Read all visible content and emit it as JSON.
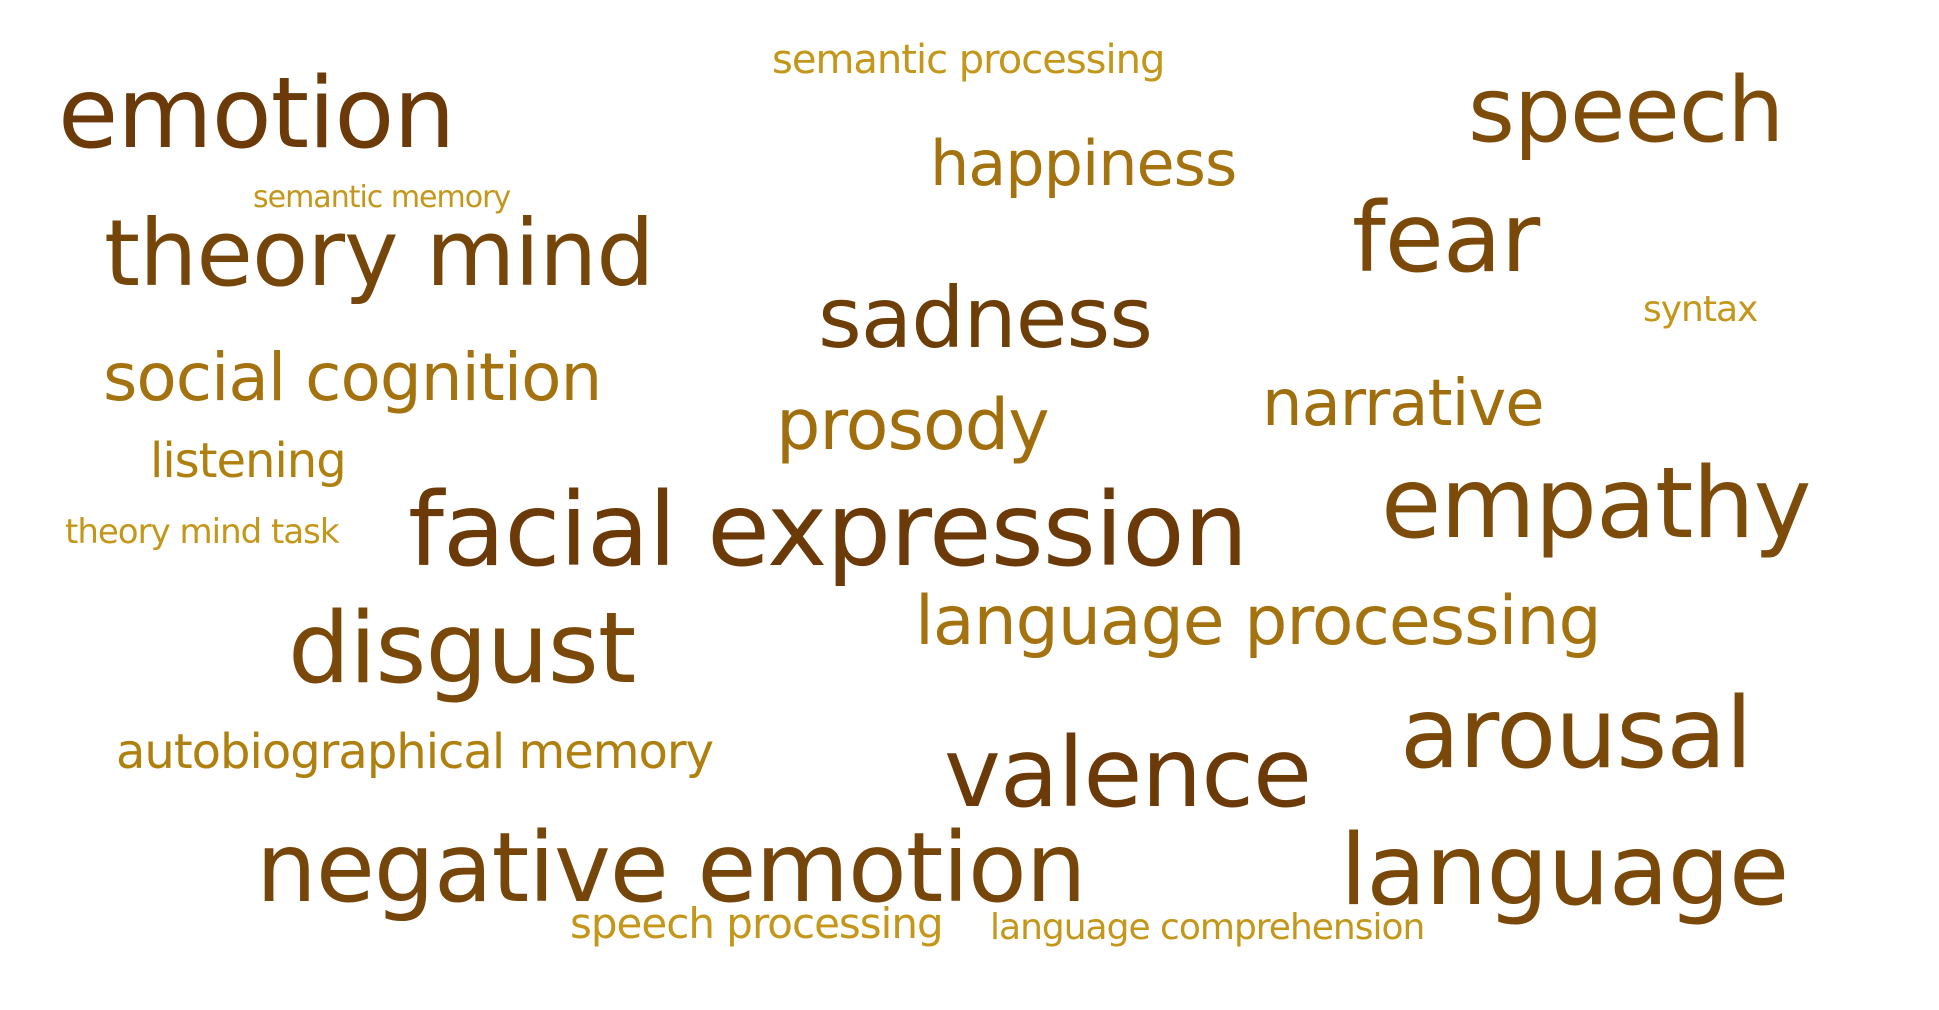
{
  "palette": {
    "dark": "#6b3a08",
    "mid": "#8a5a0c",
    "light": "#b0800f",
    "lightest": "#c4961a"
  },
  "words": {
    "semantic_processing": "semantic processing",
    "emotion": "emotion",
    "speech": "speech",
    "happiness": "happiness",
    "semantic_memory": "semantic memory",
    "theory_mind": "theory mind",
    "fear": "fear",
    "sadness": "sadness",
    "syntax": "syntax",
    "social_cognition": "social cognition",
    "narrative": "narrative",
    "prosody": "prosody",
    "listening": "listening",
    "empathy": "empathy",
    "theory_mind_task": "theory mind task",
    "facial_expression": "facial expression",
    "language_processing": "language processing",
    "disgust": "disgust",
    "arousal": "arousal",
    "autobiographical_memory": "autobiographical memory",
    "valence": "valence",
    "negative_emotion": "negative emotion",
    "language": "language",
    "speech_processing": "speech processing",
    "language_comprehension": "language comprehension"
  }
}
